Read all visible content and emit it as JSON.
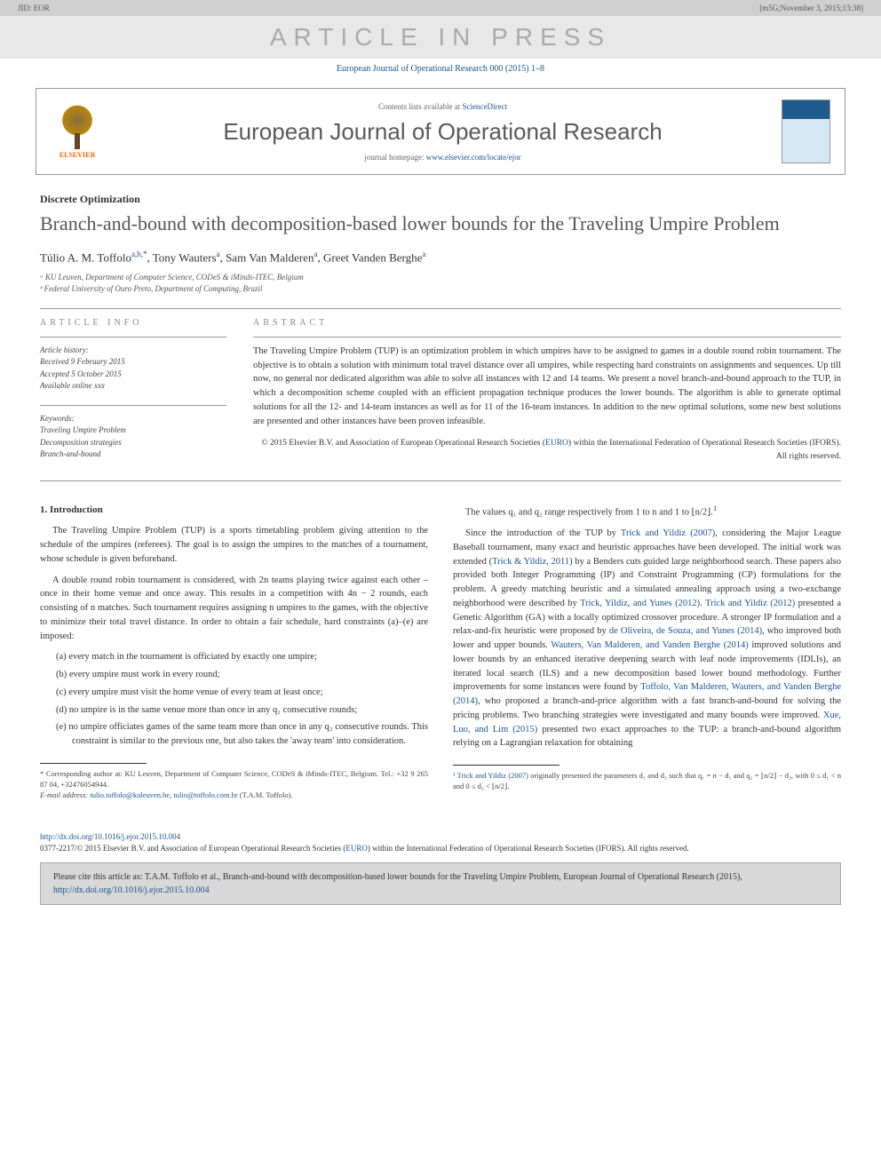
{
  "topbar": {
    "left": "JID: EOR",
    "right": "[m5G;November 3, 2015;13:38]"
  },
  "watermark": "ARTICLE IN PRESS",
  "journal_ref": "European Journal of Operational Research 000 (2015) 1–8",
  "header": {
    "contents_prefix": "Contents lists available at ",
    "contents_link": "ScienceDirect",
    "journal_title": "European Journal of Operational Research",
    "homepage_prefix": "journal homepage: ",
    "homepage_link": "www.elsevier.com/locate/ejor",
    "elsevier": "ELSEVIER"
  },
  "section_tag": "Discrete Optimization",
  "title": "Branch-and-bound with decomposition-based lower bounds for the Traveling Umpire Problem",
  "authors_html": "Túlio A. M. Toffolo",
  "author1": {
    "name": "Túlio A. M. Toffolo",
    "sup": "a,b,*"
  },
  "author2": {
    "name": "Tony Wauters",
    "sup": "a"
  },
  "author3": {
    "name": "Sam Van Malderen",
    "sup": "a"
  },
  "author4": {
    "name": "Greet Vanden Berghe",
    "sup": "a"
  },
  "affiliations": {
    "a": "ᵃ KU Leuven, Department of Computer Science, CODeS & iMinds-ITEC, Belgium",
    "b": "ᵇ Federal University of Ouro Preto, Department of Computing, Brazil"
  },
  "info": {
    "heading": "ARTICLE INFO",
    "history_label": "Article history:",
    "received": "Received 9 February 2015",
    "accepted": "Accepted 5 October 2015",
    "available": "Available online xxx",
    "keywords_label": "Keywords:",
    "kw1": "Traveling Umpire Problem",
    "kw2": "Decomposition strategies",
    "kw3": "Branch-and-bound"
  },
  "abstract": {
    "heading": "ABSTRACT",
    "text": "The Traveling Umpire Problem (TUP) is an optimization problem in which umpires have to be assigned to games in a double round robin tournament. The objective is to obtain a solution with minimum total travel distance over all umpires, while respecting hard constraints on assignments and sequences. Up till now, no general nor dedicated algorithm was able to solve all instances with 12 and 14 teams. We present a novel branch-and-bound approach to the TUP, in which a decomposition scheme coupled with an efficient propagation technique produces the lower bounds. The algorithm is able to generate optimal solutions for all the 12- and 14-team instances as well as for 11 of the 16-team instances. In addition to the new optimal solutions, some new best solutions are presented and other instances have been proven infeasible.",
    "copyright": "© 2015 Elsevier B.V. and Association of European Operational Research Societies (",
    "euro": "EURO",
    "copyright2": ") within the International Federation of Operational Research Societies (IFORS). All rights reserved."
  },
  "intro": {
    "heading": "1. Introduction",
    "p1": "The Traveling Umpire Problem (TUP) is a sports timetabling problem giving attention to the schedule of the umpires (referees). The goal is to assign the umpires to the matches of a tournament, whose schedule is given beforehand.",
    "p2": "A double round robin tournament is considered, with 2n teams playing twice against each other – once in their home venue and once away. This results in a competition with 4n − 2 rounds, each consisting of n matches. Such tournament requires assigning n umpires to the games, with the objective to minimize their total travel distance. In order to obtain a fair schedule, hard constraints (a)–(e) are imposed:",
    "ca": "(a) every match in the tournament is officiated by exactly one umpire;",
    "cb": "(b) every umpire must work in every round;",
    "cc": "(c) every umpire must visit the home venue of every team at least once;",
    "cd": "(d) no umpire is in the same venue more than once in any q₁ consecutive rounds;",
    "ce": "(e) no umpire officiates games of the same team more than once in any q₂ consecutive rounds. This constraint is similar to the previous one, but also takes the 'away team' into consideration."
  },
  "col2": {
    "p1a": "The values q₁ and q₂ range respectively from 1 to n and 1 to ⌊n/2⌋.",
    "sup1": "1",
    "p2a": "Since the introduction of the TUP by ",
    "ref1": "Trick and Yildiz (2007)",
    "p2b": ", considering the Major League Baseball tournament, many exact and heuristic approaches have been developed. The initial work was extended (",
    "ref2": "Trick & Yildiz, 2011",
    "p2c": ") by a Benders cuts guided large neighborhood search. These papers also provided both Integer Programming (IP) and Constraint Programming (CP) formulations for the problem. A greedy matching heuristic and a simulated annealing approach using a two-exchange neighborhood were described by ",
    "ref3": "Trick, Yildiz, and Yunes (2012)",
    "p2d": ". ",
    "ref4": "Trick and Yildiz (2012)",
    "p2e": " presented a Genetic Algorithm (GA) with a locally optimized crossover procedure. A stronger IP formulation and a relax-and-fix heuristic were proposed by ",
    "ref5": "de Oliveira, de Souza, and Yunes (2014)",
    "p2f": ", who improved both lower and upper bounds. ",
    "ref6": "Wauters, Van Malderen, and Vanden Berghe (2014)",
    "p2g": " improved solutions and lower bounds by an enhanced iterative deepening search with leaf node improvements (IDLIs), an iterated local search (ILS) and a new decomposition based lower bound methodology. Further improvements for some instances were found by ",
    "ref7": "Toffolo, Van Malderen, Wauters, and Vanden Berghe (2014)",
    "p2h": ", who proposed a branch-and-price algorithm with a fast branch-and-bound for solving the pricing problems. Two branching strategies were investigated and many bounds were improved. ",
    "ref8": "Xue, Luo, and Lim (2015)",
    "p2i": " presented two exact approaches to the TUP: a branch-and-bound algorithm relying on a Lagrangian relaxation for obtaining"
  },
  "footnotes_left": {
    "corr": "* Corresponding author at: KU Leuven, Department of Computer Science, CODeS & iMinds-ITEC, Belgium. Tel.: +32 9 265 87 04, +32476054944.",
    "email_label": "E-mail address: ",
    "email1": "tulio.toffolo@kuleuven.be",
    "email_sep": ", ",
    "email2": "tulio@toffolo.com.br",
    "email_tail": " (T.A.M. Toffolo)."
  },
  "footnotes_right": {
    "fn1a": "¹ ",
    "fn1_ref": "Trick and Yildiz (2007)",
    "fn1b": " originally presented the parameters d₁ and d₂ such that q₁ = n − d₁ and q₂ = ⌊n/2⌋ − d₂, with 0 ≤ d₁ < n and 0 ≤ d₂ < ⌊n/2⌋."
  },
  "doi": {
    "link": "http://dx.doi.org/10.1016/j.ejor.2015.10.004",
    "line": "0377-2217/© 2015 Elsevier B.V. and Association of European Operational Research Societies (",
    "euro": "EURO",
    "line2": ") within the International Federation of Operational Research Societies (IFORS). All rights reserved."
  },
  "citation": {
    "text": "Please cite this article as: T.A.M. Toffolo et al., Branch-and-bound with decomposition-based lower bounds for the Traveling Umpire Problem, European Journal of Operational Research (2015), ",
    "link": "http://dx.doi.org/10.1016/j.ejor.2015.10.004"
  },
  "colors": {
    "link": "#1a5490",
    "watermark_bg": "#e8e8e8",
    "watermark_fg": "#aaaaaa",
    "topbar_bg": "#d0d0d0",
    "citation_bg": "#d8d8d8",
    "elsevier_orange": "#ff6600"
  }
}
